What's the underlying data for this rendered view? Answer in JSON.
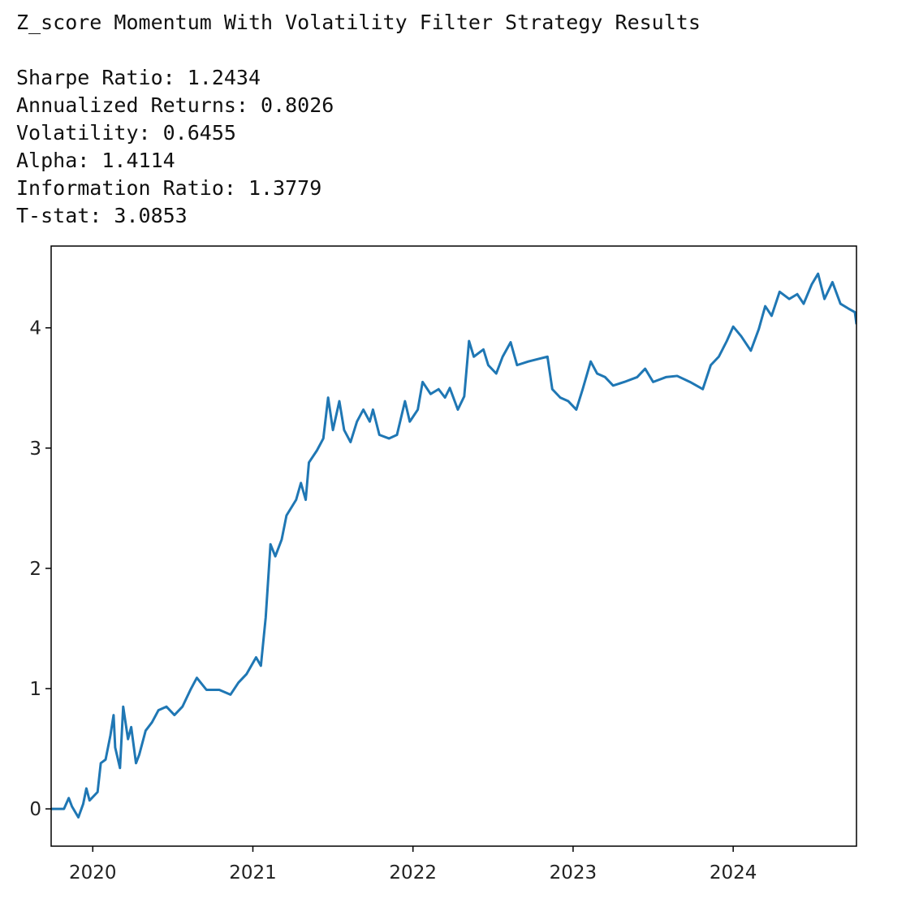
{
  "output": {
    "title": "Z_score Momentum With Volatility Filter Strategy Results",
    "lines": [
      "Sharpe Ratio: 1.2434",
      "Annualized Returns: 0.8026",
      "Volatility: 0.6455",
      "Alpha: 1.4114",
      "Information Ratio: 1.3779",
      "T-stat: 3.0853"
    ]
  },
  "chart_data": {
    "type": "line",
    "x": [
      2019.74,
      2019.82,
      2019.85,
      2019.87,
      2019.91,
      2019.94,
      2019.96,
      2019.98,
      2020.03,
      2020.05,
      2020.08,
      2020.11,
      2020.13,
      2020.14,
      2020.17,
      2020.19,
      2020.22,
      2020.24,
      2020.27,
      2020.29,
      2020.33,
      2020.37,
      2020.41,
      2020.46,
      2020.51,
      2020.56,
      2020.61,
      2020.65,
      2020.71,
      2020.79,
      2020.86,
      2020.91,
      2020.96,
      2021.02,
      2021.05,
      2021.08,
      2021.11,
      2021.14,
      2021.18,
      2021.21,
      2021.27,
      2021.3,
      2021.33,
      2021.35,
      2021.4,
      2021.44,
      2021.47,
      2021.5,
      2021.54,
      2021.57,
      2021.61,
      2021.65,
      2021.69,
      2021.73,
      2021.75,
      2021.79,
      2021.85,
      2021.9,
      2021.95,
      2021.98,
      2022.03,
      2022.06,
      2022.11,
      2022.16,
      2022.2,
      2022.23,
      2022.28,
      2022.32,
      2022.35,
      2022.38,
      2022.44,
      2022.47,
      2022.52,
      2022.56,
      2022.61,
      2022.65,
      2022.72,
      2022.78,
      2022.84,
      2022.87,
      2022.92,
      2022.97,
      2023.02,
      2023.06,
      2023.11,
      2023.15,
      2023.2,
      2023.25,
      2023.32,
      2023.4,
      2023.45,
      2023.5,
      2023.58,
      2023.65,
      2023.73,
      2023.81,
      2023.86,
      2023.91,
      2023.96,
      2024.0,
      2024.05,
      2024.11,
      2024.16,
      2024.2,
      2024.24,
      2024.29,
      2024.35,
      2024.4,
      2024.44,
      2024.49,
      2024.53,
      2024.57,
      2024.62,
      2024.67,
      2024.72,
      2024.76,
      2024.77
    ],
    "series": [
      {
        "color": "#1f77b4",
        "values": [
          0.0,
          0.0,
          0.09,
          0.02,
          -0.07,
          0.04,
          0.17,
          0.07,
          0.14,
          0.38,
          0.41,
          0.61,
          0.78,
          0.51,
          0.34,
          0.85,
          0.58,
          0.68,
          0.38,
          0.45,
          0.65,
          0.72,
          0.82,
          0.85,
          0.78,
          0.85,
          0.99,
          1.09,
          0.99,
          0.99,
          0.95,
          1.05,
          1.12,
          1.26,
          1.19,
          1.59,
          2.2,
          2.1,
          2.24,
          2.44,
          2.57,
          2.71,
          2.57,
          2.88,
          2.98,
          3.08,
          3.42,
          3.15,
          3.39,
          3.15,
          3.05,
          3.22,
          3.32,
          3.22,
          3.32,
          3.11,
          3.08,
          3.11,
          3.39,
          3.22,
          3.32,
          3.55,
          3.45,
          3.49,
          3.42,
          3.5,
          3.32,
          3.43,
          3.89,
          3.76,
          3.82,
          3.69,
          3.62,
          3.76,
          3.88,
          3.69,
          3.72,
          3.74,
          3.76,
          3.49,
          3.42,
          3.39,
          3.32,
          3.49,
          3.72,
          3.62,
          3.59,
          3.52,
          3.55,
          3.59,
          3.66,
          3.55,
          3.59,
          3.6,
          3.55,
          3.49,
          3.69,
          3.76,
          3.89,
          4.01,
          3.93,
          3.81,
          3.99,
          4.18,
          4.1,
          4.3,
          4.24,
          4.28,
          4.2,
          4.36,
          4.45,
          4.24,
          4.38,
          4.2,
          4.16,
          4.13,
          4.03
        ]
      }
    ],
    "xlim": [
      2019.74,
      2024.77
    ],
    "ylim": [
      -0.31,
      4.68
    ],
    "xticks": [
      2020,
      2021,
      2022,
      2023,
      2024
    ],
    "yticks": [
      0,
      1,
      2,
      3,
      4
    ]
  }
}
